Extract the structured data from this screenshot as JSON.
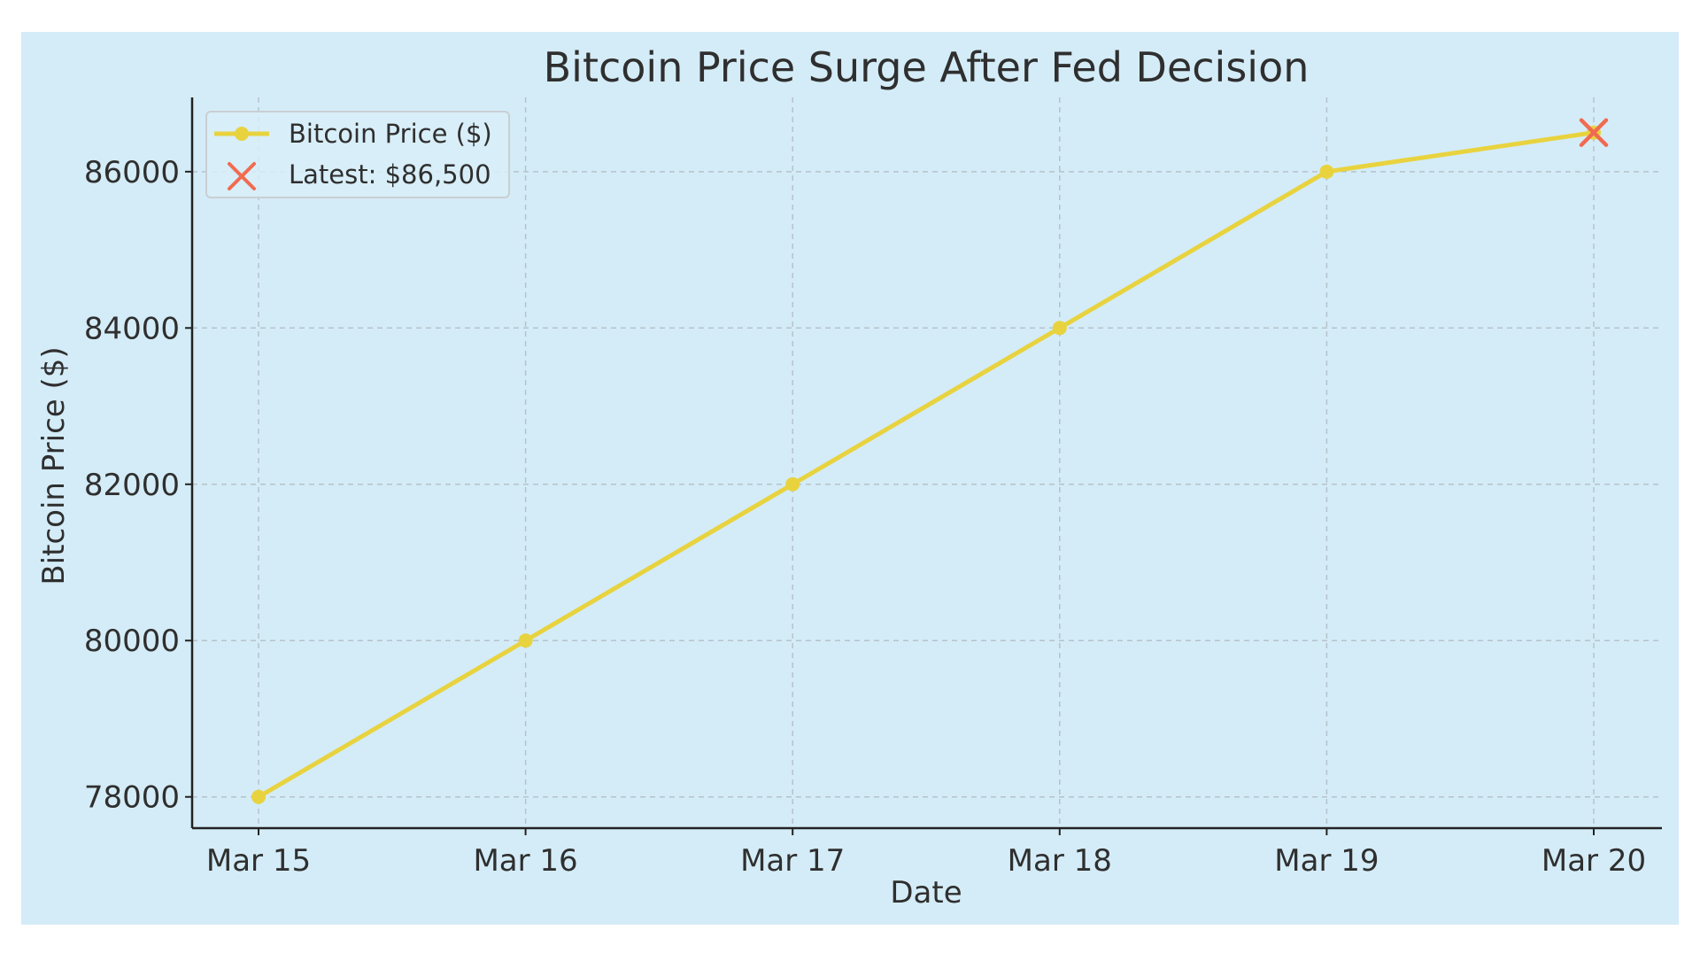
{
  "chart_data": {
    "type": "line",
    "title": "Bitcoin Price Surge After Fed Decision",
    "xlabel": "Date",
    "ylabel": "Bitcoin Price ($)",
    "categories": [
      "Mar 15",
      "Mar 16",
      "Mar 17",
      "Mar 18",
      "Mar 19",
      "Mar 20"
    ],
    "series": [
      {
        "name": "Bitcoin Price ($)",
        "values": [
          78000,
          80000,
          82000,
          84000,
          86000,
          86500
        ],
        "color": "#e8d33f",
        "marker": "circle"
      }
    ],
    "highlight": {
      "name": "Latest: $86,500",
      "category": "Mar 20",
      "value": 86500,
      "color": "#f06b50",
      "marker": "x"
    },
    "yticks": [
      78000,
      80000,
      82000,
      84000,
      86000
    ],
    "ylim": [
      77600,
      86950
    ],
    "grid": true,
    "legend_position": "top-left",
    "background_color": "#d4ecf7"
  }
}
